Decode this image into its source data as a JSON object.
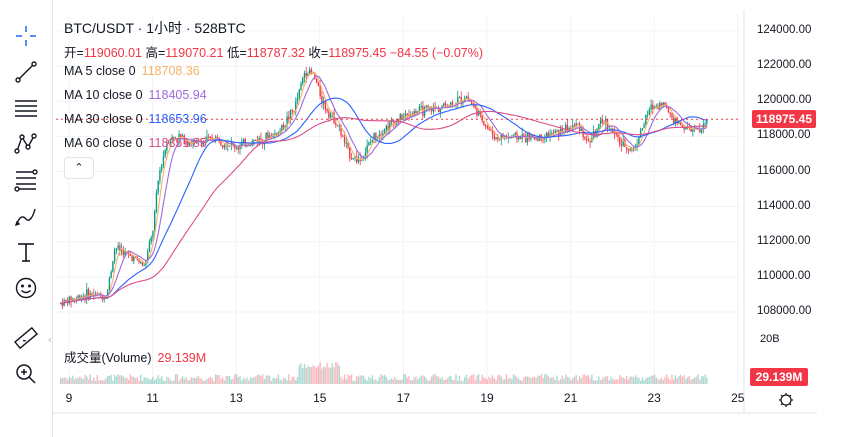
{
  "toolbar": {
    "tools": [
      {
        "icon": "crosshair-icon"
      },
      {
        "icon": "trend-line-icon"
      },
      {
        "icon": "horizontal-lines-icon"
      },
      {
        "icon": "pattern-icon"
      },
      {
        "icon": "fib-retracement-icon"
      },
      {
        "icon": "brush-icon"
      },
      {
        "icon": "text-icon"
      },
      {
        "icon": "emoji-icon"
      },
      {
        "icon": "ruler-icon"
      },
      {
        "icon": "zoom-in-icon"
      }
    ],
    "collapse_glyph": "‹"
  },
  "legend": {
    "title": "BTC/USDT · 1小时 · 528BTC",
    "open_label": "开=",
    "open": "119060.01",
    "high_label": "高=",
    "high": "119070.21",
    "low_label": "低=",
    "low": "118787.32",
    "close_label": "收=",
    "close": "118975.45",
    "change": "−84.55 (−0.07%)"
  },
  "ma": [
    {
      "label": "MA 5 close 0",
      "value": "118708.36",
      "color": "#f7b267"
    },
    {
      "label": "MA 10 close 0",
      "value": "118405.94",
      "color": "#9c6ade"
    },
    {
      "label": "MA 30 close 0",
      "value": "118653.96",
      "color": "#2962ff"
    },
    {
      "label": "MA 60 close 0",
      "value": "118351.85",
      "color": "#d94f8a"
    }
  ],
  "collapse_glyph": "⌃",
  "volume": {
    "label": "成交量(Volume)",
    "value": "29.139M"
  },
  "price_axis": {
    "labels": [
      "124000.00",
      "122000.00",
      "120000.00",
      "118000.00",
      "116000.00",
      "114000.00",
      "112000.00",
      "110000.00",
      "108000.00"
    ],
    "current": "118975.45",
    "volume_axis_label": "20B",
    "volume_current": "29.139M"
  },
  "time_axis": {
    "labels": [
      "9",
      "11",
      "13",
      "15",
      "17",
      "19",
      "21",
      "23",
      "25"
    ]
  },
  "colors": {
    "up": "#089981",
    "down": "#f23645",
    "grid": "#f0f3fa",
    "axis_text": "#131722"
  },
  "chart_data": {
    "type": "candlestick",
    "title": "BTC/USDT · 1小时 · 528BTC",
    "ylim": [
      107200,
      125000
    ],
    "x_ticks": [
      "9",
      "11",
      "13",
      "15",
      "17",
      "19",
      "21",
      "23",
      "25"
    ],
    "anchors": [
      {
        "day": 8.8,
        "price": 108500
      },
      {
        "day": 9.4,
        "price": 109000
      },
      {
        "day": 9.9,
        "price": 108900
      },
      {
        "day": 10.1,
        "price": 111700
      },
      {
        "day": 10.6,
        "price": 111000
      },
      {
        "day": 10.8,
        "price": 110600
      },
      {
        "day": 11.0,
        "price": 112500
      },
      {
        "day": 11.15,
        "price": 115800
      },
      {
        "day": 11.35,
        "price": 117800
      },
      {
        "day": 11.6,
        "price": 118000
      },
      {
        "day": 12.0,
        "price": 117600
      },
      {
        "day": 12.5,
        "price": 117900
      },
      {
        "day": 13.0,
        "price": 117400
      },
      {
        "day": 13.5,
        "price": 117800
      },
      {
        "day": 14.0,
        "price": 118200
      },
      {
        "day": 14.4,
        "price": 119600
      },
      {
        "day": 14.65,
        "price": 121800
      },
      {
        "day": 14.85,
        "price": 121500
      },
      {
        "day": 15.1,
        "price": 119800
      },
      {
        "day": 15.4,
        "price": 118800
      },
      {
        "day": 15.7,
        "price": 117000
      },
      {
        "day": 15.95,
        "price": 116600
      },
      {
        "day": 16.3,
        "price": 118000
      },
      {
        "day": 16.8,
        "price": 118900
      },
      {
        "day": 17.3,
        "price": 119400
      },
      {
        "day": 17.8,
        "price": 119600
      },
      {
        "day": 18.2,
        "price": 119900
      },
      {
        "day": 18.5,
        "price": 120300
      },
      {
        "day": 18.9,
        "price": 118900
      },
      {
        "day": 19.2,
        "price": 117900
      },
      {
        "day": 19.6,
        "price": 118000
      },
      {
        "day": 20.2,
        "price": 117900
      },
      {
        "day": 20.8,
        "price": 118300
      },
      {
        "day": 21.2,
        "price": 118700
      },
      {
        "day": 21.4,
        "price": 117600
      },
      {
        "day": 21.8,
        "price": 118900
      },
      {
        "day": 22.2,
        "price": 117600
      },
      {
        "day": 22.5,
        "price": 117200
      },
      {
        "day": 22.9,
        "price": 119600
      },
      {
        "day": 23.2,
        "price": 119900
      },
      {
        "day": 23.5,
        "price": 118900
      },
      {
        "day": 23.8,
        "price": 118400
      },
      {
        "day": 24.1,
        "price": 118300
      },
      {
        "day": 24.3,
        "price": 118975
      }
    ],
    "last_close": 118975.45
  }
}
